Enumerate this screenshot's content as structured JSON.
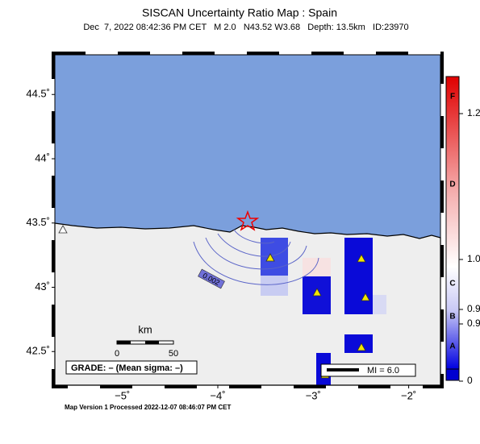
{
  "header": {
    "title": "SISCAN Uncertainty Ratio Map : Spain",
    "subtitle": "Dec  7, 2022 08:42:36 PM CET   M 2.0   N43.52 W3.68   Depth: 13.5km   ID:23970"
  },
  "map": {
    "lat_ticks": [
      {
        "value": 44.5,
        "label": "44.5˚"
      },
      {
        "value": 44,
        "label": "44˚"
      },
      {
        "value": 43.5,
        "label": "43.5˚"
      },
      {
        "value": 43,
        "label": "43˚"
      },
      {
        "value": 42.5,
        "label": "42.5˚"
      }
    ],
    "lon_ticks": [
      {
        "value": -5,
        "label": "−5˚"
      },
      {
        "value": -4,
        "label": "−4˚"
      },
      {
        "value": -3,
        "label": "−3˚"
      },
      {
        "value": -2,
        "label": "−2˚"
      }
    ],
    "colorbar_ticks": [
      {
        "value": 1.2,
        "label": "1.2"
      },
      {
        "value": 1,
        "label": "1.0"
      },
      {
        "value": 0.9,
        "label": "0.9"
      },
      {
        "value": 0.9,
        "label": "0.9"
      },
      0
    ],
    "grade_letters": [
      "F",
      "D",
      "C",
      "B",
      "A"
    ],
    "scale": {
      "unit": "km",
      "ticks": [
        0,
        50
      ]
    },
    "grade_text": "GRADE: – (Mean sigma: –)",
    "legend_text": "MI = 6.0",
    "contour_label": "0.002"
  },
  "footer": "Map Version 1 Processed 2022-12-07 08:46:07 PM CET"
}
